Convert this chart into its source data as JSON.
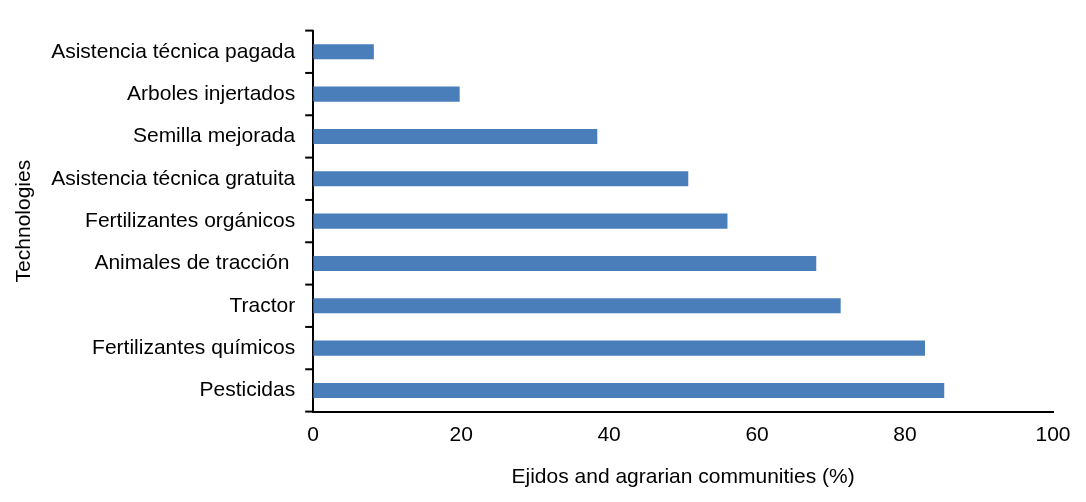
{
  "chart_data": {
    "type": "bar",
    "orientation": "horizontal",
    "xlabel": "Ejidos and agrarian communities (%)",
    "ylabel": "Technologies",
    "categories": [
      "Asistencia técnica pagada",
      "Arboles injertados",
      "Semilla mejorada",
      "Asistencia técnica gratuita",
      "Fertilizantes orgánicos",
      "Animales de tracción ",
      "Tractor",
      "Fertilizantes químicos",
      "Pesticidas"
    ],
    "values": [
      8.2,
      19.8,
      38.4,
      50.7,
      56.0,
      68.0,
      71.3,
      82.7,
      85.3
    ],
    "color": "#4a7ebb",
    "xlim": [
      0,
      100
    ],
    "xticks": [
      0,
      20,
      40,
      60,
      80,
      100
    ],
    "grid": false,
    "legend": false
  }
}
